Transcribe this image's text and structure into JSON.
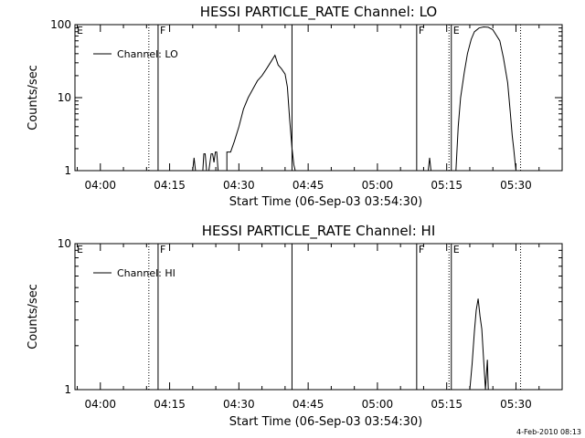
{
  "chart_data": [
    {
      "type": "line",
      "title": "HESSI PARTICLE_RATE Channel: LO",
      "xlabel": "Start Time (06-Sep-03 03:54:30)",
      "ylabel": "Counts/sec",
      "yscale": "log",
      "ylim": [
        1,
        100
      ],
      "xlim": [
        -5.5,
        100
      ],
      "x_units": "minutes after 04:00",
      "xticks": [
        {
          "label": "04:00",
          "x": 0
        },
        {
          "label": "04:15",
          "x": 15
        },
        {
          "label": "04:30",
          "x": 30
        },
        {
          "label": "04:45",
          "x": 45
        },
        {
          "label": "05:00",
          "x": 60
        },
        {
          "label": "05:15",
          "x": 75
        },
        {
          "label": "05:30",
          "x": 90
        }
      ],
      "yticks": [
        {
          "label": "1",
          "y": 1
        },
        {
          "label": "10",
          "y": 10
        },
        {
          "label": "100",
          "y": 100
        }
      ],
      "legend": {
        "entry": "Channel: LO",
        "position": "top-left"
      },
      "markers": [
        {
          "label": "E",
          "x": -5.5,
          "style": "none"
        },
        {
          "label": "",
          "x": 10.5,
          "style": "dotted"
        },
        {
          "label": "F",
          "x": 12.5,
          "style": "solid"
        },
        {
          "label": "",
          "x": 41.5,
          "style": "solid"
        },
        {
          "label": "F",
          "x": 68.5,
          "style": "solid"
        },
        {
          "label": "",
          "x": 75.5,
          "style": "dotted"
        },
        {
          "label": "E",
          "x": 76,
          "style": "solid"
        },
        {
          "label": "",
          "x": 91,
          "style": "dotted"
        }
      ],
      "series": [
        {
          "x": [
            20,
            20.3,
            20.6,
            22.2,
            22.4,
            22.7,
            23,
            23.5,
            24,
            24.3,
            24.6,
            24.9,
            25.2,
            25.5,
            27.4,
            27.4,
            28.2,
            29,
            30,
            31,
            32,
            33,
            34,
            35,
            36,
            36.8,
            37.8,
            38.5,
            39.2,
            40,
            40.5,
            41,
            41.5,
            41.9,
            42.2,
            43,
            71,
            71.3,
            71.6,
            72,
            77,
            77.5,
            78,
            78.8,
            79.5,
            80.3,
            81,
            82,
            83,
            84,
            85,
            86.5,
            87.3,
            88.2,
            88.8,
            89.2,
            89.5,
            89.8,
            90,
            90.3
          ],
          "y": [
            1,
            1.5,
            1,
            1,
            1.7,
            1.7,
            1,
            1,
            1.7,
            1.7,
            1.3,
            1.8,
            1.8,
            1,
            1,
            1.8,
            1.8,
            2.5,
            4,
            7,
            10,
            13,
            17,
            20,
            25,
            30,
            38,
            28,
            25,
            21,
            14,
            5,
            2,
            1.2,
            1,
            1,
            1,
            1.5,
            1,
            1,
            1,
            4,
            10,
            22,
            40,
            63,
            80,
            90,
            93,
            92,
            85,
            60,
            35,
            16,
            6,
            3,
            2,
            1.3,
            1,
            1
          ]
        }
      ]
    },
    {
      "type": "line",
      "title": "HESSI PARTICLE_RATE Channel: HI",
      "xlabel": "Start Time (06-Sep-03 03:54:30)",
      "ylabel": "Counts/sec",
      "yscale": "log",
      "ylim": [
        1,
        10
      ],
      "xlim": [
        -5.5,
        100
      ],
      "x_units": "minutes after 04:00",
      "xticks": [
        {
          "label": "04:00",
          "x": 0
        },
        {
          "label": "04:15",
          "x": 15
        },
        {
          "label": "04:30",
          "x": 30
        },
        {
          "label": "04:45",
          "x": 45
        },
        {
          "label": "05:00",
          "x": 60
        },
        {
          "label": "05:15",
          "x": 75
        },
        {
          "label": "05:30",
          "x": 90
        }
      ],
      "yticks": [
        {
          "label": "1",
          "y": 1
        },
        {
          "label": "10",
          "y": 10
        }
      ],
      "legend": {
        "entry": "Channel: HI",
        "position": "top-left"
      },
      "markers": [
        {
          "label": "E",
          "x": -5.5,
          "style": "none"
        },
        {
          "label": "",
          "x": 10.5,
          "style": "dotted"
        },
        {
          "label": "F",
          "x": 12.5,
          "style": "solid"
        },
        {
          "label": "",
          "x": 41.5,
          "style": "solid"
        },
        {
          "label": "F",
          "x": 68.5,
          "style": "solid"
        },
        {
          "label": "",
          "x": 75.5,
          "style": "dotted"
        },
        {
          "label": "E",
          "x": 76,
          "style": "solid"
        },
        {
          "label": "",
          "x": 91,
          "style": "dotted"
        }
      ],
      "series": [
        {
          "x": [
            80,
            80.5,
            81,
            81.4,
            81.8,
            82.2,
            82.6,
            83,
            83.4,
            83.8,
            84,
            84.3
          ],
          "y": [
            1,
            1.5,
            2.5,
            3.5,
            4.2,
            3.2,
            2.6,
            1.6,
            1,
            1.6,
            1,
            1
          ]
        }
      ]
    }
  ],
  "footer": {
    "timestamp": "4-Feb-2010 08:13"
  }
}
